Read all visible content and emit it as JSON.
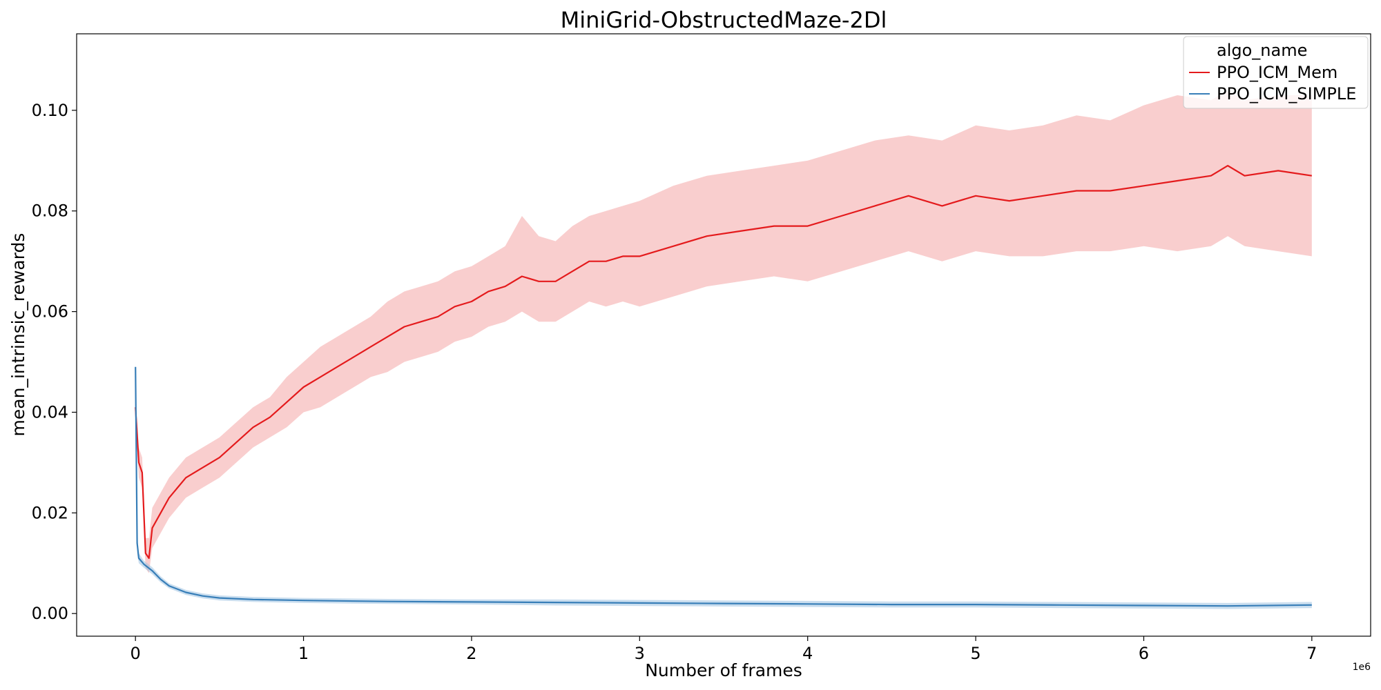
{
  "chart_data": {
    "type": "line",
    "title": "MiniGrid-ObstructedMaze-2Dl",
    "xlabel": "Number of frames",
    "ylabel": "mean_intrinsic_rewards",
    "x_offset_label": "1e6",
    "xlim": [
      -0.35,
      7.35
    ],
    "ylim": [
      -0.0045,
      0.1152
    ],
    "xticks": [
      0,
      1,
      2,
      3,
      4,
      5,
      6,
      7
    ],
    "xtick_labels": [
      "0",
      "1",
      "2",
      "3",
      "4",
      "5",
      "6",
      "7"
    ],
    "yticks": [
      0.0,
      0.02,
      0.04,
      0.06,
      0.08,
      0.1
    ],
    "ytick_labels": [
      "0.00",
      "0.02",
      "0.04",
      "0.06",
      "0.08",
      "0.10"
    ],
    "grid": false,
    "legend": {
      "title": "algo_name",
      "placement": "top-right"
    },
    "series": [
      {
        "name": "PPO_ICM_Mem",
        "color": "#e41a1c",
        "band_color": "#f4a6a6",
        "x": [
          0.0,
          0.02,
          0.04,
          0.06,
          0.08,
          0.1,
          0.15,
          0.2,
          0.3,
          0.4,
          0.5,
          0.6,
          0.7,
          0.8,
          0.9,
          1.0,
          1.1,
          1.2,
          1.3,
          1.4,
          1.5,
          1.6,
          1.7,
          1.8,
          1.9,
          2.0,
          2.1,
          2.2,
          2.3,
          2.4,
          2.5,
          2.6,
          2.7,
          2.8,
          2.9,
          3.0,
          3.2,
          3.4,
          3.6,
          3.8,
          4.0,
          4.2,
          4.4,
          4.6,
          4.8,
          5.0,
          5.2,
          5.4,
          5.6,
          5.8,
          6.0,
          6.2,
          6.4,
          6.5,
          6.6,
          6.8,
          7.0
        ],
        "mean": [
          0.041,
          0.03,
          0.028,
          0.012,
          0.011,
          0.017,
          0.02,
          0.023,
          0.027,
          0.029,
          0.031,
          0.034,
          0.037,
          0.039,
          0.042,
          0.045,
          0.047,
          0.049,
          0.051,
          0.053,
          0.055,
          0.057,
          0.058,
          0.059,
          0.061,
          0.062,
          0.064,
          0.065,
          0.067,
          0.066,
          0.066,
          0.068,
          0.07,
          0.07,
          0.071,
          0.071,
          0.073,
          0.075,
          0.076,
          0.077,
          0.077,
          0.079,
          0.081,
          0.083,
          0.081,
          0.083,
          0.082,
          0.083,
          0.084,
          0.084,
          0.085,
          0.086,
          0.087,
          0.089,
          0.087,
          0.088,
          0.087
        ],
        "upper": [
          0.043,
          0.033,
          0.031,
          0.015,
          0.015,
          0.021,
          0.024,
          0.027,
          0.031,
          0.033,
          0.035,
          0.038,
          0.041,
          0.043,
          0.047,
          0.05,
          0.053,
          0.055,
          0.057,
          0.059,
          0.062,
          0.064,
          0.065,
          0.066,
          0.068,
          0.069,
          0.071,
          0.073,
          0.079,
          0.075,
          0.074,
          0.077,
          0.079,
          0.08,
          0.081,
          0.082,
          0.085,
          0.087,
          0.088,
          0.089,
          0.09,
          0.092,
          0.094,
          0.095,
          0.094,
          0.097,
          0.096,
          0.097,
          0.099,
          0.098,
          0.101,
          0.103,
          0.102,
          0.104,
          0.102,
          0.103,
          0.103
        ],
        "lower": [
          0.039,
          0.027,
          0.025,
          0.009,
          0.008,
          0.013,
          0.016,
          0.019,
          0.023,
          0.025,
          0.027,
          0.03,
          0.033,
          0.035,
          0.037,
          0.04,
          0.041,
          0.043,
          0.045,
          0.047,
          0.048,
          0.05,
          0.051,
          0.052,
          0.054,
          0.055,
          0.057,
          0.058,
          0.06,
          0.058,
          0.058,
          0.06,
          0.062,
          0.061,
          0.062,
          0.061,
          0.063,
          0.065,
          0.066,
          0.067,
          0.066,
          0.068,
          0.07,
          0.072,
          0.07,
          0.072,
          0.071,
          0.071,
          0.072,
          0.072,
          0.073,
          0.072,
          0.073,
          0.075,
          0.073,
          0.072,
          0.071
        ]
      },
      {
        "name": "PPO_ICM_SIMPLE",
        "color": "#377eb8",
        "band_color": "#9ec3e2",
        "x": [
          0.0,
          0.01,
          0.02,
          0.05,
          0.1,
          0.15,
          0.2,
          0.3,
          0.4,
          0.5,
          0.7,
          1.0,
          1.5,
          2.0,
          2.5,
          3.0,
          3.5,
          4.0,
          4.5,
          5.0,
          5.5,
          6.0,
          6.5,
          7.0
        ],
        "mean": [
          0.049,
          0.014,
          0.011,
          0.0098,
          0.0085,
          0.0068,
          0.0055,
          0.0042,
          0.0035,
          0.0031,
          0.0028,
          0.0026,
          0.0024,
          0.0023,
          0.0022,
          0.0021,
          0.002,
          0.0019,
          0.0018,
          0.0018,
          0.0017,
          0.0016,
          0.0015,
          0.0017
        ],
        "upper": [
          0.05,
          0.016,
          0.012,
          0.0105,
          0.0092,
          0.0074,
          0.006,
          0.0047,
          0.004,
          0.0036,
          0.0033,
          0.0031,
          0.0029,
          0.0028,
          0.0028,
          0.0027,
          0.0026,
          0.0025,
          0.0024,
          0.0024,
          0.0023,
          0.0022,
          0.0021,
          0.0023
        ],
        "lower": [
          0.048,
          0.012,
          0.01,
          0.0091,
          0.0078,
          0.0062,
          0.005,
          0.0037,
          0.003,
          0.0026,
          0.0023,
          0.0021,
          0.0019,
          0.0018,
          0.0016,
          0.0015,
          0.0014,
          0.0013,
          0.0012,
          0.0012,
          0.0011,
          0.001,
          0.0009,
          0.0011
        ]
      }
    ]
  }
}
